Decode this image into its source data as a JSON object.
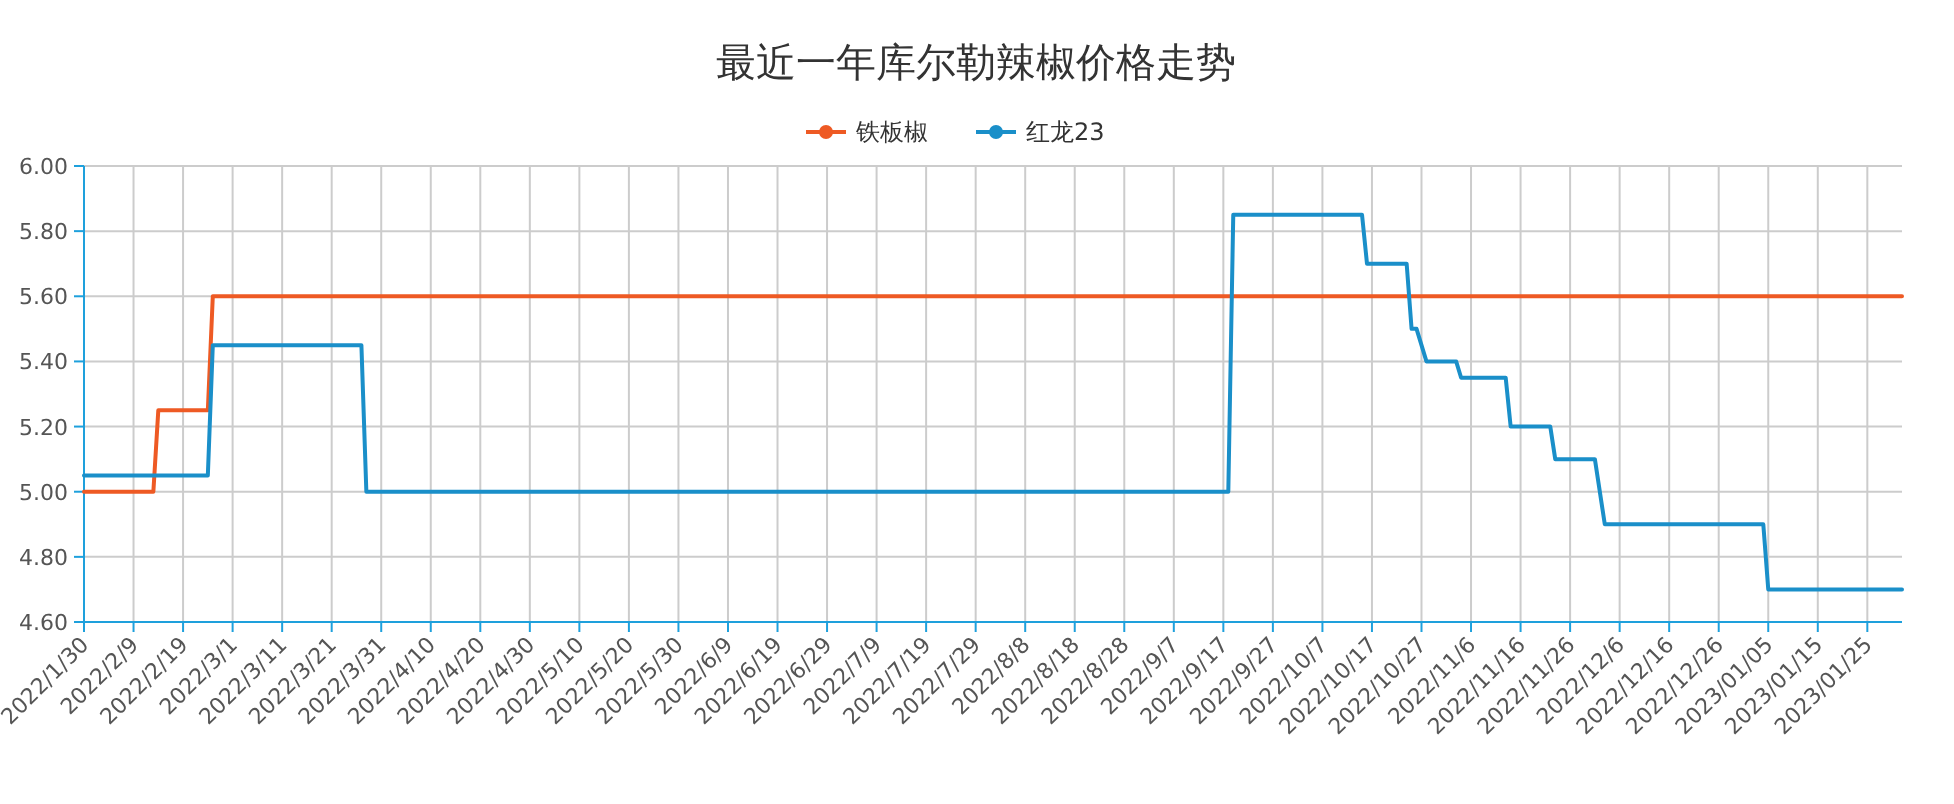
{
  "chart_data": {
    "type": "line",
    "title": "最近一年库尔勒辣椒价格走势",
    "legend": "top",
    "grid": true,
    "xlim": [
      "2022-01-30",
      "2023-02-01"
    ],
    "xticks": [
      {
        "value": "2022-01-30",
        "label": "2022/1/30"
      },
      {
        "value": "2022-02-09",
        "label": "2022/2/9"
      },
      {
        "value": "2022-02-19",
        "label": "2022/2/19"
      },
      {
        "value": "2022-03-01",
        "label": "2022/3/1"
      },
      {
        "value": "2022-03-11",
        "label": "2022/3/11"
      },
      {
        "value": "2022-03-21",
        "label": "2022/3/21"
      },
      {
        "value": "2022-03-31",
        "label": "2022/3/31"
      },
      {
        "value": "2022-04-10",
        "label": "2022/4/10"
      },
      {
        "value": "2022-04-20",
        "label": "2022/4/20"
      },
      {
        "value": "2022-04-30",
        "label": "2022/4/30"
      },
      {
        "value": "2022-05-10",
        "label": "2022/5/10"
      },
      {
        "value": "2022-05-20",
        "label": "2022/5/20"
      },
      {
        "value": "2022-05-30",
        "label": "2022/5/30"
      },
      {
        "value": "2022-06-09",
        "label": "2022/6/9"
      },
      {
        "value": "2022-06-19",
        "label": "2022/6/19"
      },
      {
        "value": "2022-06-29",
        "label": "2022/6/29"
      },
      {
        "value": "2022-07-09",
        "label": "2022/7/9"
      },
      {
        "value": "2022-07-19",
        "label": "2022/7/19"
      },
      {
        "value": "2022-07-29",
        "label": "2022/7/29"
      },
      {
        "value": "2022-08-08",
        "label": "2022/8/8"
      },
      {
        "value": "2022-08-18",
        "label": "2022/8/18"
      },
      {
        "value": "2022-08-28",
        "label": "2022/8/28"
      },
      {
        "value": "2022-09-07",
        "label": "2022/9/7"
      },
      {
        "value": "2022-09-17",
        "label": "2022/9/17"
      },
      {
        "value": "2022-09-27",
        "label": "2022/9/27"
      },
      {
        "value": "2022-10-07",
        "label": "2022/10/7"
      },
      {
        "value": "2022-10-17",
        "label": "2022/10/17"
      },
      {
        "value": "2022-10-27",
        "label": "2022/10/27"
      },
      {
        "value": "2022-11-06",
        "label": "2022/11/6"
      },
      {
        "value": "2022-11-16",
        "label": "2022/11/16"
      },
      {
        "value": "2022-11-26",
        "label": "2022/11/26"
      },
      {
        "value": "2022-12-06",
        "label": "2022/12/6"
      },
      {
        "value": "2022-12-16",
        "label": "2022/12/16"
      },
      {
        "value": "2022-12-26",
        "label": "2022/12/26"
      },
      {
        "value": "2023-01-05",
        "label": "2023/01/05"
      },
      {
        "value": "2023-01-15",
        "label": "2023/01/15"
      },
      {
        "value": "2023-01-25",
        "label": "2023/01/25"
      }
    ],
    "ylim": [
      4.6,
      6.0
    ],
    "yticks": [
      {
        "value": 4.6,
        "label": "4.60"
      },
      {
        "value": 4.8,
        "label": "4.80"
      },
      {
        "value": 5.0,
        "label": "5.00"
      },
      {
        "value": 5.2,
        "label": "5.20"
      },
      {
        "value": 5.4,
        "label": "5.40"
      },
      {
        "value": 5.6,
        "label": "5.60"
      },
      {
        "value": 5.8,
        "label": "5.80"
      },
      {
        "value": 6.0,
        "label": "6.00"
      }
    ],
    "series": [
      {
        "name": "铁板椒",
        "color": "#ee5a24",
        "x": [
          "2022-01-30",
          "2022-02-13",
          "2022-02-14",
          "2022-02-24",
          "2022-02-25",
          "2023-02-01"
        ],
        "values": [
          5.0,
          5.0,
          5.25,
          5.25,
          5.6,
          5.6
        ]
      },
      {
        "name": "红龙23",
        "color": "#1a8fc9",
        "x": [
          "2022-01-30",
          "2022-02-24",
          "2022-02-25",
          "2022-03-27",
          "2022-03-28",
          "2022-09-18",
          "2022-09-19",
          "2022-10-15",
          "2022-10-16",
          "2022-10-24",
          "2022-10-25",
          "2022-10-26",
          "2022-10-28",
          "2022-11-03",
          "2022-11-04",
          "2022-11-13",
          "2022-11-14",
          "2022-11-22",
          "2022-11-23",
          "2022-12-01",
          "2022-12-03",
          "2023-01-04",
          "2023-01-05",
          "2023-02-01"
        ],
        "values": [
          5.05,
          5.05,
          5.45,
          5.45,
          5.0,
          5.0,
          5.85,
          5.85,
          5.7,
          5.7,
          5.5,
          5.5,
          5.4,
          5.4,
          5.35,
          5.35,
          5.2,
          5.2,
          5.1,
          5.1,
          4.9,
          4.9,
          4.7,
          4.7
        ]
      }
    ]
  }
}
